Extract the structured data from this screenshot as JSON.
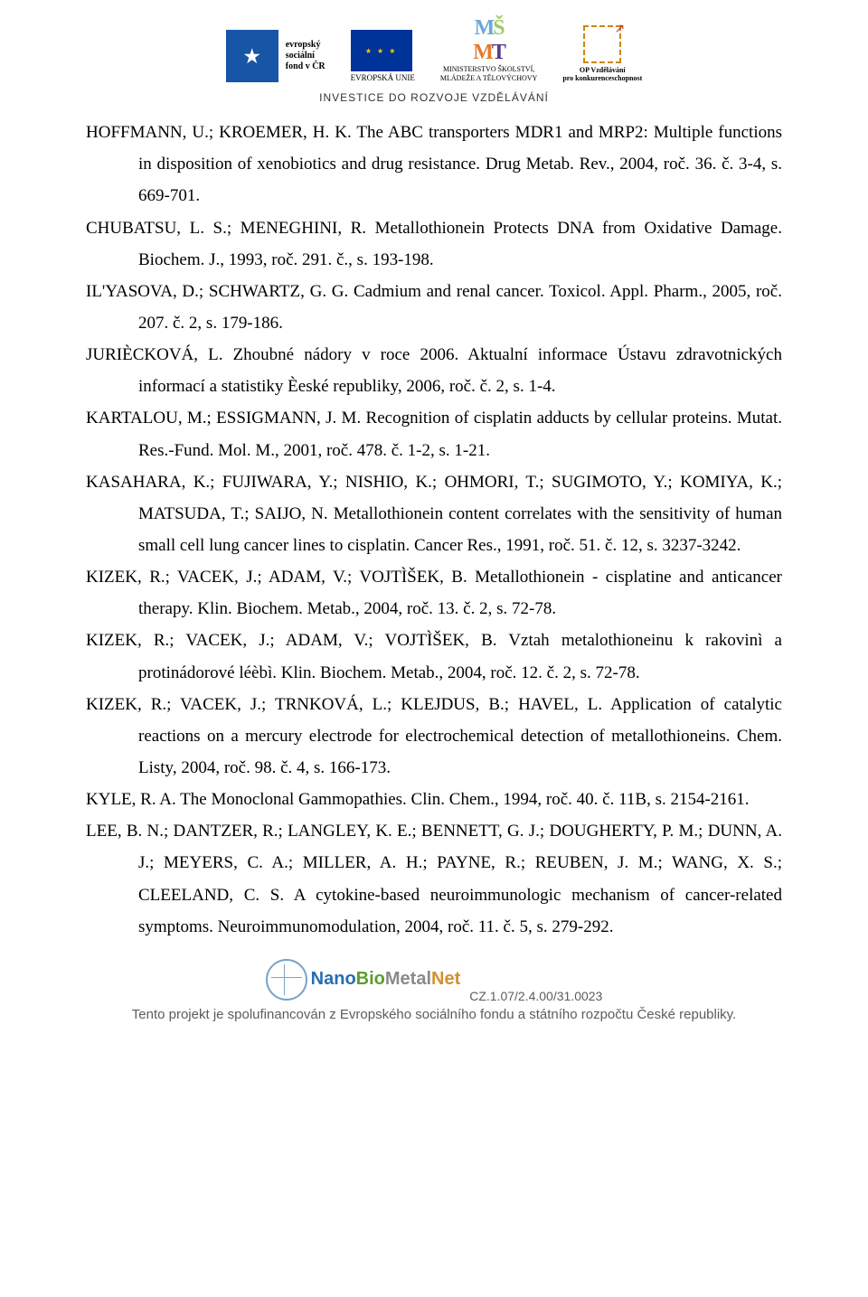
{
  "header": {
    "esf_lines": "evropský\nsociální\nfond v ČR",
    "eu_label": "EVROPSKÁ UNIE",
    "msmt_sub": "MINISTERSTVO ŠKOLSTVÍ,\nMLÁDEŽE A TĚLOVÝCHOVY",
    "op_line1": "OP Vzdělávání",
    "op_line2": "pro konkurenceschopnost",
    "investice": "INVESTICE DO ROZVOJE VZDĚLÁVÁNÍ"
  },
  "references": [
    "HOFFMANN, U.; KROEMER, H. K. The ABC transporters MDR1 and MRP2: Multiple functions in disposition of xenobiotics and drug resistance. Drug Metab. Rev., 2004, roč. 36. č. 3-4, s. 669-701.",
    "CHUBATSU, L. S.; MENEGHINI, R. Metallothionein Protects DNA from Oxidative Damage. Biochem. J., 1993, roč. 291. č., s. 193-198.",
    "IL'YASOVA, D.; SCHWARTZ, G. G. Cadmium and renal cancer. Toxicol. Appl. Pharm., 2005, roč. 207. č. 2, s. 179-186.",
    "JURIÈCKOVÁ, L. Zhoubné nádory v roce 2006. Aktualní informace Ústavu zdravotnických informací a statistiky Èeské republiky, 2006, roč. č. 2, s. 1-4.",
    "KARTALOU, M.; ESSIGMANN, J. M. Recognition of cisplatin adducts by cellular proteins. Mutat. Res.-Fund. Mol. M., 2001, roč. 478. č. 1-2, s. 1-21.",
    "KASAHARA, K.; FUJIWARA, Y.; NISHIO, K.; OHMORI, T.; SUGIMOTO, Y.; KOMIYA, K.; MATSUDA, T.; SAIJO, N. Metallothionein content correlates with the sensitivity of human small cell lung cancer lines to cisplatin. Cancer Res., 1991, roč. 51. č. 12, s. 3237-3242.",
    "KIZEK, R.; VACEK, J.; ADAM, V.; VOJTÌŠEK, B. Metallothionein - cisplatine and anticancer therapy. Klin. Biochem. Metab., 2004, roč. 13. č. 2, s. 72-78.",
    "KIZEK, R.; VACEK, J.; ADAM, V.; VOJTÌŠEK, B. Vztah metalothioneinu k rakovinì a protinádorové léèbì. Klin. Biochem. Metab., 2004, roč. 12. č. 2, s. 72-78.",
    "KIZEK, R.; VACEK, J.; TRNKOVÁ, L.; KLEJDUS, B.; HAVEL, L. Application of catalytic reactions on a mercury electrode for electrochemical detection of metallothioneins. Chem. Listy, 2004, roč. 98. č. 4, s. 166-173.",
    "KYLE, R. A. The Monoclonal Gammopathies. Clin. Chem., 1994, roč. 40. č. 11B, s. 2154-2161.",
    "LEE, B. N.; DANTZER, R.; LANGLEY, K. E.; BENNETT, G. J.; DOUGHERTY, P. M.; DUNN, A. J.; MEYERS, C. A.; MILLER, A. H.; PAYNE, R.; REUBEN, J. M.; WANG, X. S.; CLEELAND, C. S. A cytokine-based neuroimmunologic mechanism of cancer-related symptoms. Neuroimmunomodulation, 2004, roč. 11. č. 5, s. 279-292."
  ],
  "footer": {
    "logo_nano": "Nano",
    "logo_bio": "Bio",
    "logo_metal": "Metal",
    "logo_net": "Net",
    "code": "CZ.1.07/2.4.00/31.0023",
    "text": "Tento projekt je spolufinancován z Evropského sociálního fondu a státního rozpočtu České republiky."
  }
}
